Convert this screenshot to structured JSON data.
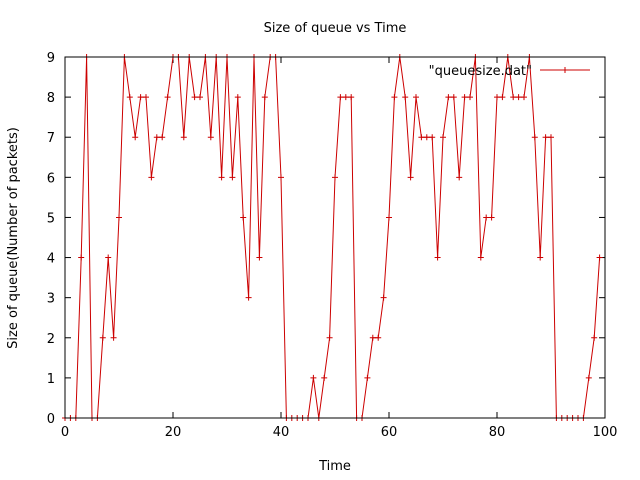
{
  "chart_data": {
    "type": "line",
    "title": "Size of queue vs Time",
    "xlabel": "Time",
    "ylabel": "Size of queue(Number of packets)",
    "xlim": [
      0,
      100
    ],
    "ylim": [
      0,
      9
    ],
    "xticks": [
      0,
      20,
      40,
      60,
      80,
      100
    ],
    "yticks": [
      0,
      1,
      2,
      3,
      4,
      5,
      6,
      7,
      8,
      9
    ],
    "grid": false,
    "legend_position": "top-right",
    "series": [
      {
        "name": "\"queuesize.dat\"",
        "color": "#cc0000",
        "marker": "plus",
        "x": [
          0,
          1,
          2,
          3,
          4,
          5,
          6,
          7,
          8,
          9,
          10,
          11,
          12,
          13,
          14,
          15,
          16,
          17,
          18,
          19,
          20,
          21,
          22,
          23,
          24,
          25,
          26,
          27,
          28,
          29,
          30,
          31,
          32,
          33,
          34,
          35,
          36,
          37,
          38,
          39,
          40,
          41,
          42,
          43,
          44,
          45,
          46,
          47,
          48,
          49,
          50,
          51,
          52,
          53,
          54,
          55,
          56,
          57,
          58,
          59,
          60,
          61,
          62,
          63,
          64,
          65,
          66,
          67,
          68,
          69,
          70,
          71,
          72,
          73,
          74,
          75,
          76,
          77,
          78,
          79,
          80,
          81,
          82,
          83,
          84,
          85,
          86,
          87,
          88,
          89,
          90,
          91,
          92,
          93,
          94,
          95,
          96,
          97,
          98,
          99
        ],
        "y": [
          0,
          0,
          0,
          4,
          9,
          0,
          0,
          2,
          4,
          2,
          5,
          9,
          8,
          7,
          8,
          8,
          6,
          7,
          7,
          8,
          9,
          9,
          7,
          9,
          8,
          8,
          9,
          7,
          9,
          6,
          9,
          6,
          8,
          5,
          3,
          9,
          4,
          8,
          9,
          9,
          6,
          0,
          0,
          0,
          0,
          0,
          1,
          0,
          1,
          2,
          6,
          8,
          8,
          8,
          0,
          0,
          1,
          2,
          2,
          3,
          5,
          8,
          9,
          8,
          6,
          8,
          7,
          7,
          7,
          4,
          7,
          8,
          8,
          6,
          8,
          8,
          9,
          4,
          5,
          5,
          8,
          8,
          9,
          8,
          8,
          8,
          9,
          7,
          4,
          7,
          7,
          0,
          0,
          0,
          0,
          0,
          0,
          1,
          2,
          4
        ]
      }
    ]
  }
}
